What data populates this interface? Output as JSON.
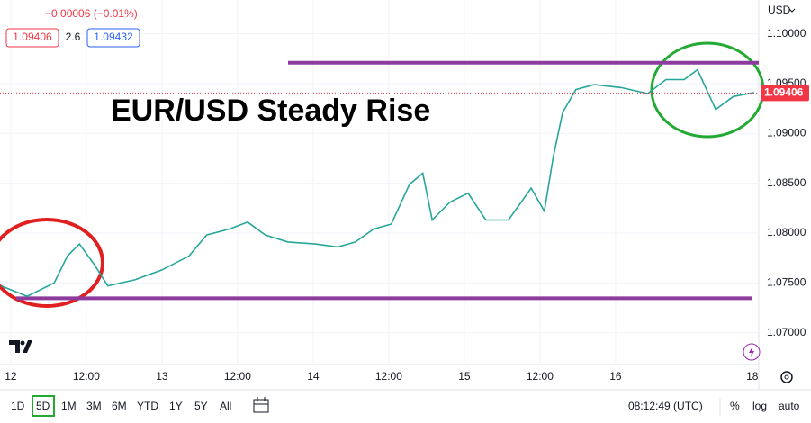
{
  "header": {
    "change": "−0.00006 (−0.01%)",
    "bid": 1.09406,
    "spread": 2.6,
    "ask": 1.09432,
    "currency": "USD"
  },
  "chart_data": {
    "type": "line",
    "title": "EUR/USD Steady Rise",
    "color": "#26a69a",
    "x": [
      -1.5,
      2.6,
      6.9,
      9,
      10.9,
      13.3,
      15.4,
      19.7,
      24,
      28.3,
      31.1,
      34.7,
      37.6,
      40.4,
      44,
      48.3,
      51.9,
      54.7,
      57.6,
      60.4,
      63.3,
      65.4,
      66.9,
      69.7,
      72.6,
      75.4,
      79,
      82.6,
      84.7,
      86.1,
      87.6,
      89.7,
      92.6,
      96.9,
      101.1,
      104,
      106.9,
      109,
      111.9,
      114.7,
      118
    ],
    "values": [
      1.0747,
      1.07365,
      1.075,
      1.0777,
      1.0789,
      1.0768,
      1.0747,
      1.0753,
      1.0763,
      1.0777,
      1.0798,
      1.0804,
      1.0811,
      1.0798,
      1.0791,
      1.0789,
      1.0786,
      1.0791,
      1.0804,
      1.0809,
      1.0849,
      1.086,
      1.0813,
      1.0831,
      1.084,
      1.0813,
      1.0813,
      1.0845,
      1.0822,
      1.0876,
      1.0921,
      1.0944,
      1.0949,
      1.0946,
      1.094,
      1.0954,
      1.0954,
      1.0964,
      1.0924,
      1.0937,
      1.0941
    ],
    "last_price": 1.09406,
    "levels": [
      1.0971,
      1.07345
    ],
    "xlim": [
      -1.7,
      118.3
    ],
    "ylim": [
      1.0668,
      1.1034
    ],
    "xticks": [
      {
        "value": 0,
        "label": "12"
      },
      {
        "value": 12,
        "label": "12:00"
      },
      {
        "value": 24,
        "label": "13"
      },
      {
        "value": 36,
        "label": "12:00"
      },
      {
        "value": 48,
        "label": "14"
      },
      {
        "value": 60,
        "label": "12:00"
      },
      {
        "value": 72,
        "label": "15"
      },
      {
        "value": 84,
        "label": "12:00"
      },
      {
        "value": 96,
        "label": "16"
      },
      {
        "value": 117.7,
        "label": "18"
      }
    ],
    "yticks": [
      {
        "value": 1.1,
        "label": "1.10000"
      },
      {
        "value": 1.095,
        "label": "1.09500"
      },
      {
        "value": 1.09,
        "label": "1.09000"
      },
      {
        "value": 1.085,
        "label": "1.08500"
      },
      {
        "value": 1.08,
        "label": "1.08000"
      },
      {
        "value": 1.075,
        "label": "1.07500"
      },
      {
        "value": 1.07,
        "label": "1.07000"
      }
    ],
    "grid": true
  },
  "toolbar": {
    "ranges": [
      "1D",
      "5D",
      "1M",
      "3M",
      "6M",
      "YTD",
      "1Y",
      "5Y",
      "All"
    ],
    "active_range": 1,
    "clock": "08:12:49 (UTC)",
    "percent": "%",
    "log": "log",
    "auto": "auto"
  }
}
